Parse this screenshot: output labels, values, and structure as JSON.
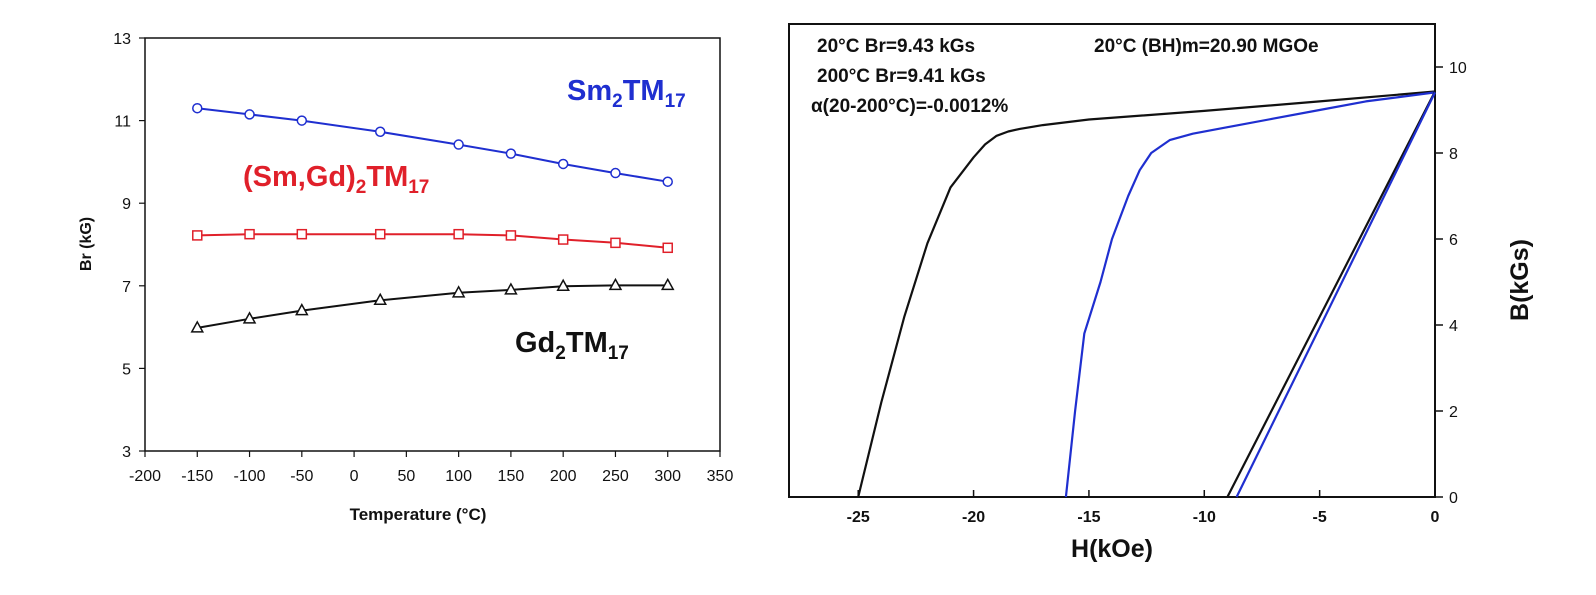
{
  "chart_data": [
    {
      "type": "line",
      "title": "",
      "xlabel": "Temperature (°C)",
      "ylabel": "Br (kG)",
      "xlim": [
        -200,
        350
      ],
      "ylim": [
        3,
        13
      ],
      "xticks": [
        -200,
        -150,
        -100,
        -50,
        0,
        50,
        100,
        150,
        200,
        250,
        300,
        350
      ],
      "yticks": [
        3,
        5,
        7,
        9,
        11,
        13
      ],
      "grid": false,
      "series": [
        {
          "name_base": "Sm",
          "name_sub1": "2",
          "name_mid": "TM",
          "name_sub2": "17",
          "color": "#1f2fd0",
          "marker": "circle",
          "x": [
            -150,
            -100,
            -50,
            25,
            100,
            150,
            200,
            250,
            300
          ],
          "y": [
            11.3,
            11.15,
            11.0,
            10.73,
            10.42,
            10.2,
            9.95,
            9.73,
            9.52
          ]
        },
        {
          "name_base": "(Sm,Gd)",
          "name_sub1": "2",
          "name_mid": "TM",
          "name_sub2": "17",
          "color": "#e0202a",
          "marker": "square",
          "x": [
            -150,
            -100,
            -50,
            25,
            100,
            150,
            200,
            250,
            300
          ],
          "y": [
            8.22,
            8.25,
            8.25,
            8.25,
            8.25,
            8.22,
            8.12,
            8.04,
            7.92
          ]
        },
        {
          "name_base": "Gd",
          "name_sub1": "2",
          "name_mid": "TM",
          "name_sub2": "17",
          "color": "#111111",
          "marker": "triangle",
          "x": [
            -150,
            -100,
            -50,
            25,
            100,
            150,
            200,
            250,
            300
          ],
          "y": [
            5.98,
            6.2,
            6.4,
            6.65,
            6.83,
            6.9,
            6.99,
            7.01,
            7.01
          ]
        }
      ]
    },
    {
      "type": "line",
      "title": "",
      "xlabel": "H(kOe)",
      "ylabel": "B(kGs)",
      "xlim": [
        -28,
        0
      ],
      "ylim": [
        0,
        11
      ],
      "xticks": [
        -25,
        -20,
        -15,
        -10,
        -5,
        0
      ],
      "yticks": [
        0,
        2,
        4,
        6,
        8,
        10
      ],
      "grid": false,
      "annotations": [
        "20°C Br=9.43 kGs",
        "200°C Br=9.41 kGs",
        "α(20-200°C)=-0.0012%",
        "20°C (BH)m=20.90 MGOe"
      ],
      "series": [
        {
          "color": "#111111",
          "x": [
            0,
            -5,
            -10,
            -15,
            -17,
            -18,
            -18.5,
            -19,
            -19.5,
            -20,
            -21,
            -22,
            -23,
            -24,
            -25
          ],
          "y": [
            9.43,
            9.2,
            8.98,
            8.78,
            8.65,
            8.56,
            8.5,
            8.4,
            8.2,
            7.9,
            7.2,
            5.9,
            4.2,
            2.2,
            0
          ]
        },
        {
          "color": "#1f2fd0",
          "x": [
            0,
            -3,
            -5,
            -7,
            -9,
            -10.5,
            -11.5,
            -12.3,
            -12.8,
            -13.3,
            -14,
            -14.5,
            -15.2,
            -15.6,
            -16
          ],
          "y": [
            9.41,
            9.2,
            9.0,
            8.8,
            8.6,
            8.45,
            8.3,
            8.0,
            7.6,
            7.0,
            6.0,
            5.0,
            3.8,
            2.0,
            0
          ]
        },
        {
          "color": "#111111",
          "x": [
            0,
            -9
          ],
          "y": [
            9.43,
            0
          ]
        },
        {
          "color": "#1f2fd0",
          "x": [
            0,
            -8.6
          ],
          "y": [
            9.41,
            0
          ]
        }
      ]
    }
  ]
}
